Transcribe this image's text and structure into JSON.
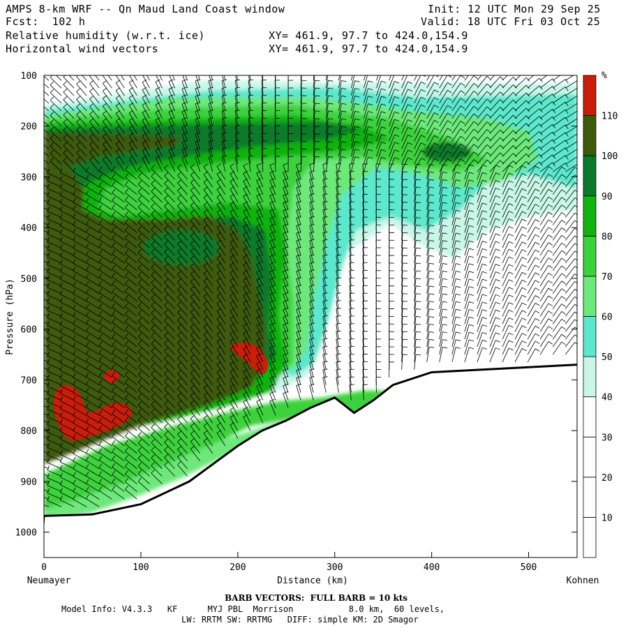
{
  "header": {
    "title_left": "AMPS 8-km WRF -- Qn Maud Land Coast window",
    "fcst": "Fcst:  102 h",
    "init": "Init: 12 UTC Mon 29 Sep 25",
    "valid": "Valid: 18 UTC Fri 03 Oct 25",
    "field1": "Relative humidity (w.r.t. ice)",
    "field2": "Horizontal wind vectors",
    "xy1": "XY= 461.9, 97.7 to 424.0,154.9",
    "xy2": "XY= 461.9, 97.7 to 424.0,154.9"
  },
  "chart_data": {
    "type": "heatmap",
    "xlabel": "Distance (km)",
    "ylabel": "Pressure (hPa)",
    "xlim": [
      0,
      550
    ],
    "ylim": [
      1050,
      100
    ],
    "x_ticks": [
      "0",
      "100",
      "200",
      "300",
      "400",
      "500"
    ],
    "y_ticks": [
      "100",
      "200",
      "300",
      "400",
      "500",
      "600",
      "700",
      "800",
      "900",
      "1000"
    ],
    "x_start_label": "Neumayer",
    "x_end_label": "Kohnen",
    "colorbar": {
      "unit": "%",
      "levels": [
        "10",
        "20",
        "30",
        "40",
        "50",
        "60",
        "70",
        "80",
        "90",
        "100",
        "110"
      ],
      "colors": [
        "#ffffff",
        "#ffffff",
        "#ffffff",
        "#c8f7e8",
        "#5ce8cd",
        "#6de87a",
        "#3cd23c",
        "#10b410",
        "#0a7a2a",
        "#3d5a0a",
        "#c81e0a"
      ]
    },
    "terrain_surface": {
      "x": [
        0,
        50,
        100,
        150,
        175,
        200,
        225,
        250,
        275,
        300,
        320,
        340,
        360,
        400,
        450,
        500,
        550
      ],
      "p": [
        968,
        965,
        945,
        900,
        865,
        830,
        800,
        780,
        755,
        735,
        765,
        740,
        710,
        685,
        680,
        675,
        670
      ]
    },
    "annotations": [
      "BARB VECTORS:  FULL BARB = 10 kts"
    ]
  },
  "footer": {
    "barb_note": "BARB VECTORS:  FULL BARB = 10 kts",
    "line1": "Model Info: V4.3.3   KF      MYJ PBL  Morrison           8.0 km,  60 levels,",
    "line2": "LW: RRTM SW: RRTMG   DIFF: simple KM: 2D Smagor"
  }
}
